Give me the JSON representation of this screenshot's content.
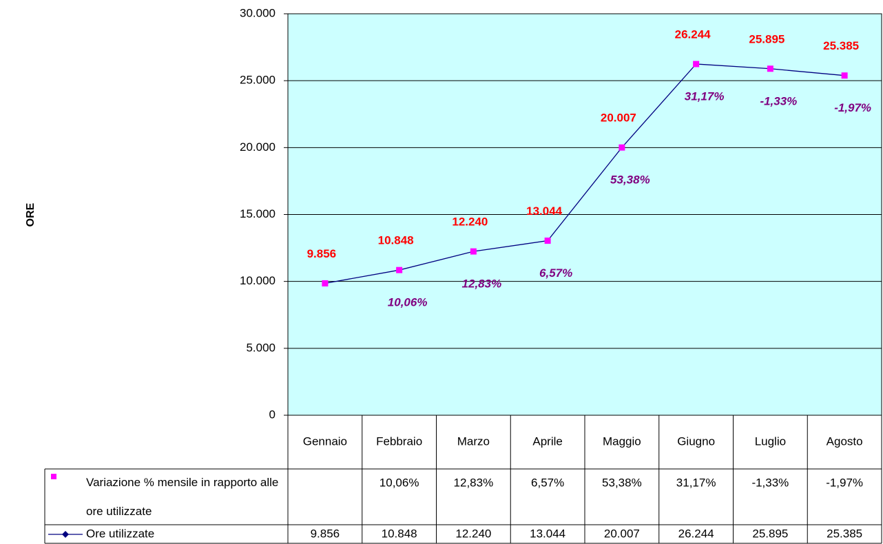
{
  "chart_data": {
    "type": "line",
    "y_label": "ORE",
    "categories": [
      "Gennaio",
      "Febbraio",
      "Marzo",
      "Aprile",
      "Maggio",
      "Giugno",
      "Luglio",
      "Agosto"
    ],
    "series": [
      {
        "name": "Variazione % mensile in rapporto alle ore utilizzate",
        "color": "#ff00ff",
        "label_color": "#800080",
        "values": [
          null,
          10.06,
          12.83,
          6.57,
          53.38,
          31.17,
          -1.33,
          -1.97
        ],
        "value_labels": [
          null,
          "10,06%",
          "12,83%",
          "6,57%",
          "53,38%",
          "31,17%",
          "-1,33%",
          "-1,97%"
        ]
      },
      {
        "name": "Ore utilizzate",
        "color": "#000080",
        "marker_color": "#ff00ff",
        "label_color": "#ff0000",
        "values": [
          9856,
          10848,
          12240,
          13044,
          20007,
          26244,
          25895,
          25385
        ],
        "value_labels": [
          "9.856",
          "10.848",
          "12.240",
          "13.044",
          "20.007",
          "26.244",
          "25.895",
          "25.385"
        ]
      }
    ],
    "ylim": [
      0,
      30000
    ],
    "yticks": [
      0,
      {
        "value": 5000,
        "label": "5.000"
      },
      {
        "value": 10000,
        "label": "10.000"
      },
      {
        "value": 15000,
        "label": "15.000"
      },
      {
        "value": 20000,
        "label": "20.000"
      },
      {
        "value": 25000,
        "label": "25.000"
      },
      {
        "value": 30000,
        "label": "30.000"
      }
    ],
    "plot_background": "#ccffff",
    "grid": true
  }
}
